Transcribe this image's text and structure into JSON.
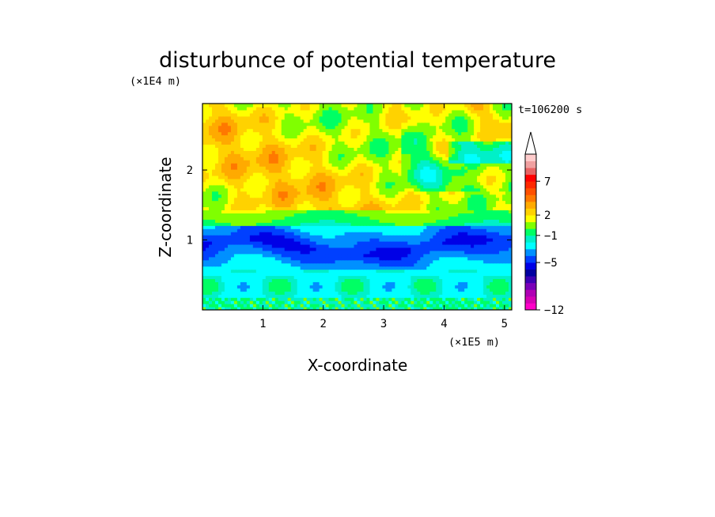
{
  "chart_data": {
    "type": "heatmap",
    "title": "disturbunce of potential temperature",
    "xlabel": "X-coordinate",
    "ylabel": "Z-coordinate",
    "x_unit": "(×1E5 m)",
    "y_unit": "(×1E4 m)",
    "time_label": "t=106200 s",
    "xlim": [
      0,
      5.12
    ],
    "ylim": [
      0,
      2.95
    ],
    "x_ticks": [
      "1",
      "2",
      "3",
      "4",
      "5"
    ],
    "x_tick_values": [
      1,
      2,
      3,
      4,
      5
    ],
    "y_ticks": [
      "1",
      "2"
    ],
    "y_tick_values": [
      1,
      2
    ],
    "colorbar": {
      "levels": [
        -12,
        -11,
        -10,
        -9,
        -8,
        -7,
        -6,
        -5,
        -4,
        -3,
        -2,
        -1,
        0,
        1,
        2,
        3,
        4,
        5,
        6,
        7,
        8,
        9,
        10
      ],
      "tick_labels": [
        "−12",
        "−5",
        "−1",
        "2",
        "7"
      ],
      "tick_values": [
        -12,
        -5,
        -1,
        2,
        7
      ],
      "colors": [
        "#ff00c8",
        "#d600b4",
        "#b000b4",
        "#7a00b8",
        "#3c00b4",
        "#0000a0",
        "#0000e6",
        "#0040ff",
        "#0090ff",
        "#00ffff",
        "#00f0c8",
        "#00ff64",
        "#80ff00",
        "#ffff00",
        "#ffd200",
        "#ffaa00",
        "#ff7800",
        "#ff5000",
        "#ff2800",
        "#ff0000",
        "#e86464",
        "#f0a0a0",
        "#ffcccc"
      ],
      "extend": "max"
    },
    "field_bands": [
      {
        "z_range": [
          0.0,
          0.18
        ],
        "value": -1,
        "description": "noisy near-surface layer"
      },
      {
        "z_range": [
          0.18,
          0.6
        ],
        "value": -2,
        "description": "cyan layer with green cells"
      },
      {
        "z_range": [
          0.6,
          1.2
        ],
        "value": -5,
        "description": "deep blue cold layer"
      },
      {
        "z_range": [
          1.2,
          1.45
        ],
        "value": 0,
        "description": "green transition"
      },
      {
        "z_range": [
          1.45,
          2.95
        ],
        "value": 2,
        "description": "warm wavy upper layer"
      }
    ]
  }
}
